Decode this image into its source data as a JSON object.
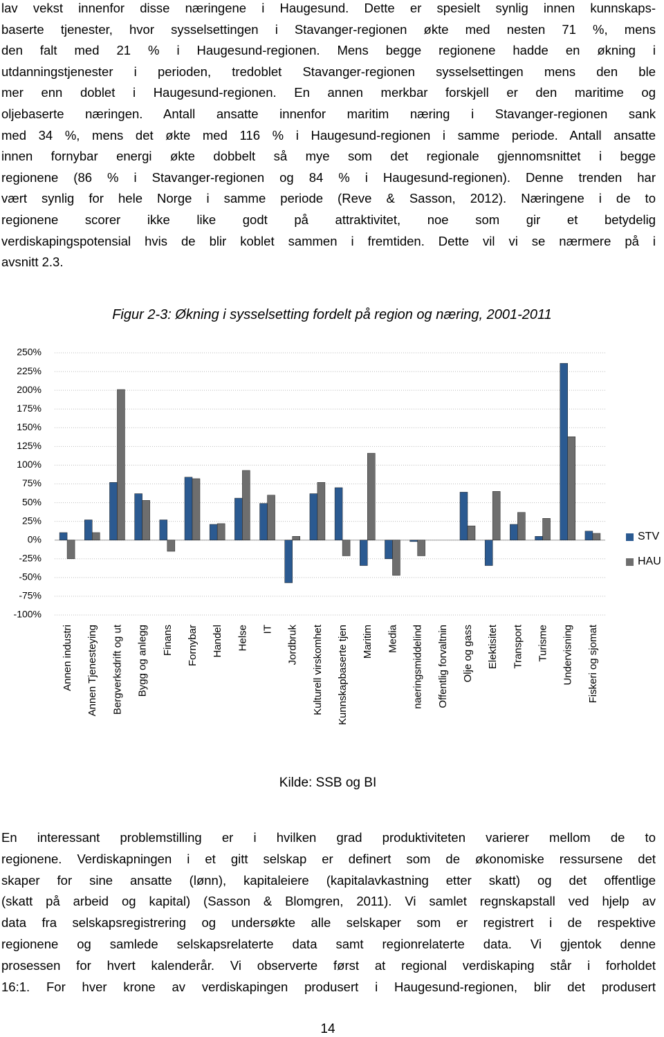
{
  "body_top": [
    "lav vekst innenfor disse næringene i Haugesund. Dette er spesielt synlig innen kunnskaps-",
    "baserte tjenester, hvor sysselsettingen i Stavanger-regionen økte med nesten 71 %, mens",
    "den falt med 21 % i Haugesund-regionen. Mens begge regionene hadde en økning i",
    "utdanningstjenester i perioden, tredoblet Stavanger-regionen sysselsettingen mens den ble",
    "mer enn doblet i Haugesund-regionen. En annen merkbar forskjell er den maritime og",
    "oljebaserte næringen. Antall ansatte innenfor maritim næring i Stavanger-regionen sank",
    "med 34 %, mens det økte med 116 % i Haugesund-regionen i samme periode. Antall ansatte",
    "innen fornybar energi økte dobbelt så mye som det regionale gjennomsnittet i begge",
    "regionene (86 % i Stavanger-regionen og 84 % i Haugesund-regionen). Denne trenden har",
    "vært synlig for hele Norge i samme periode (Reve & Sasson, 2012). Næringene i de to",
    "regionene scorer ikke like godt på attraktivitet, noe som gir et betydelig",
    "verdiskapingspotensial hvis de blir koblet sammen i fremtiden. Dette vil vi se nærmere på i",
    "avsnitt 2.3."
  ],
  "chart_data": {
    "type": "bar",
    "title": "Figur 2-3: Økning i sysselsetting fordelt på region og næring, 2001-2011",
    "categories": [
      "Annen industri",
      "Annen Tjenesteying",
      "Bergverksdrift og ut",
      "Bygg og anlegg",
      "Finans",
      "Fornybar",
      "Handel",
      "Helse",
      "IT",
      "Jordbruk",
      "Kulturell virskomhet",
      "Kunnskapbaserte tjen",
      "Maritim",
      "Media",
      "naeringsmiddelind",
      "Offentlig forvaltnin",
      "Olje og gass",
      "Elektisitet",
      "Transport",
      "Turisme",
      "Undervisning",
      "Fiskeri og sjomat"
    ],
    "series": [
      {
        "name": "STV",
        "color": "#2b5a91",
        "values": [
          10,
          27,
          77,
          62,
          27,
          84,
          21,
          56,
          49,
          -57,
          62,
          70,
          -34,
          -25,
          -2,
          0,
          64,
          -34,
          21,
          5,
          236,
          12
        ]
      },
      {
        "name": "HAU",
        "color": "#6e6e6e",
        "values": [
          -25,
          10,
          201,
          53,
          -15,
          82,
          22,
          93,
          60,
          5,
          77,
          -21,
          116,
          -47,
          -21,
          0,
          19,
          65,
          37,
          29,
          138,
          9
        ]
      }
    ],
    "ylim": [
      -100,
      250
    ],
    "yticks": [
      {
        "value": -100,
        "label": "-100%"
      },
      {
        "value": -75,
        "label": "-75%"
      },
      {
        "value": -50,
        "label": "-50%"
      },
      {
        "value": -25,
        "label": "-25%"
      },
      {
        "value": 0,
        "label": "0%"
      },
      {
        "value": 25,
        "label": "25%"
      },
      {
        "value": 50,
        "label": "50%"
      },
      {
        "value": 75,
        "label": "75%"
      },
      {
        "value": 100,
        "label": "100%"
      },
      {
        "value": 125,
        "label": "125%"
      },
      {
        "value": 150,
        "label": "150%"
      },
      {
        "value": 175,
        "label": "175%"
      },
      {
        "value": 200,
        "label": "200%"
      },
      {
        "value": 225,
        "label": "225%"
      },
      {
        "value": 250,
        "label": "250%"
      }
    ],
    "grid": true,
    "legend": "right"
  },
  "source": "Kilde: SSB og BI",
  "body_bottom": [
    "En interessant problemstilling er i hvilken grad produktiviteten varierer mellom de to",
    "regionene. Verdiskapningen i et gitt selskap er definert som de økonomiske ressursene det",
    "skaper for sine ansatte (lønn), kapitaleiere (kapitalavkastning etter skatt) og det offentlige",
    "(skatt på arbeid og kapital) (Sasson & Blomgren, 2011). Vi samlet regnskapstall ved hjelp av",
    "data fra selskapsregistrering og undersøkte alle selskaper som er registrert i de respektive",
    "regionene og samlede selskapsrelaterte data samt regionrelaterte data. Vi gjentok denne",
    "prosessen for hvert kalenderår. Vi observerte først at regional verdiskaping står i forholdet",
    "16:1. For hver krone av verdiskapingen produsert i Haugesund-regionen, blir det produsert"
  ],
  "page_number": "14"
}
